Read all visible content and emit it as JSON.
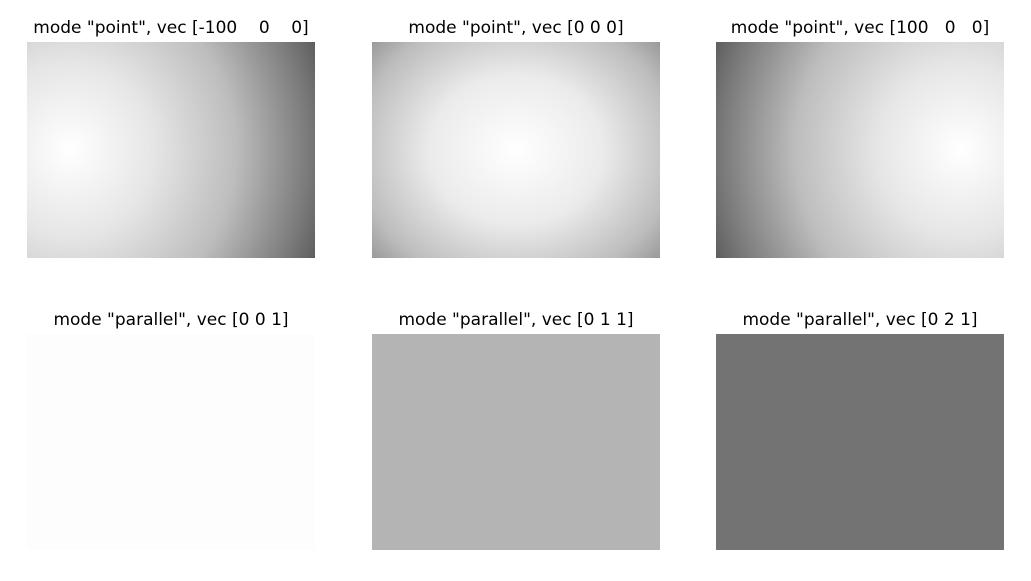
{
  "chart_data": [
    {
      "type": "heatmap",
      "title": "mode \"point\", vec [-100    0    0]",
      "mode": "point",
      "vec": [
        -100,
        0,
        0
      ],
      "shading": "radial, brightest at left-center, dark at right edge",
      "colormap": "gray"
    },
    {
      "type": "heatmap",
      "title": "mode \"point\", vec [0 0 0]",
      "mode": "point",
      "vec": [
        0,
        0,
        0
      ],
      "shading": "radial, brightest at center, dark at corners",
      "colormap": "gray"
    },
    {
      "type": "heatmap",
      "title": "mode \"point\", vec [100   0   0]",
      "mode": "point",
      "vec": [
        100,
        0,
        0
      ],
      "shading": "radial, brightest at right-center, dark at left edge",
      "colormap": "gray"
    },
    {
      "type": "heatmap",
      "title": "mode \"parallel\", vec [0 0 1]",
      "mode": "parallel",
      "vec": [
        0,
        0,
        1
      ],
      "uniform_value": 0.99,
      "color": "#fdfdfd",
      "colormap": "gray"
    },
    {
      "type": "heatmap",
      "title": "mode \"parallel\", vec [0 1 1]",
      "mode": "parallel",
      "vec": [
        0,
        1,
        1
      ],
      "uniform_value": 0.71,
      "color": "#b4b4b4",
      "colormap": "gray"
    },
    {
      "type": "heatmap",
      "title": "mode \"parallel\", vec [0 2 1]",
      "mode": "parallel",
      "vec": [
        0,
        2,
        1
      ],
      "uniform_value": 0.45,
      "color": "#737373",
      "colormap": "gray"
    }
  ]
}
